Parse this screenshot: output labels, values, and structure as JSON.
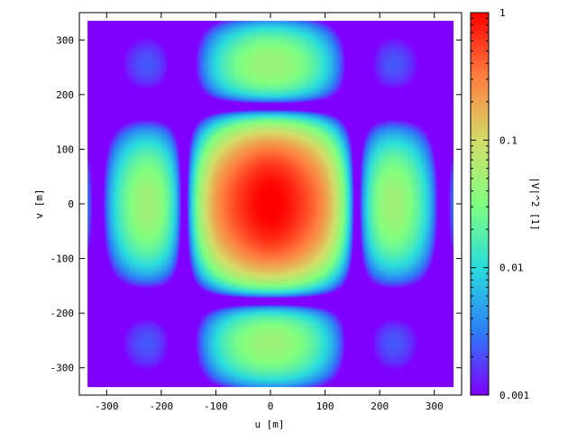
{
  "chart_data": {
    "type": "heatmap",
    "title": "",
    "xlabel": "u [m]",
    "ylabel": "v [m]",
    "xlim": [
      -350,
      350
    ],
    "ylim": [
      -350,
      350
    ],
    "extent": {
      "u": [
        -335,
        335
      ],
      "v": [
        -335,
        335
      ]
    },
    "x_ticks": [
      -300,
      -200,
      -100,
      0,
      100,
      200,
      300
    ],
    "y_ticks": [
      -300,
      -200,
      -100,
      0,
      100,
      200,
      300
    ],
    "x_tick_labels": [
      "-300",
      "-200",
      "-100",
      "0",
      "100",
      "200",
      "300"
    ],
    "y_tick_labels": [
      "-300",
      "-200",
      "-100",
      "0",
      "100",
      "200",
      "300"
    ],
    "colorbar": {
      "label": "|V|^2 [1]",
      "scale": "log",
      "range": [
        0.001,
        1
      ],
      "ticks": [
        0.001,
        0.01,
        0.1,
        1
      ],
      "tick_labels": [
        "0.001",
        "0.01",
        "0.1",
        "1"
      ]
    },
    "colormap": [
      "#8000ff",
      "#2c7ef7",
      "#2adddd",
      "#80ff80",
      "#d4dd69",
      "#ff7f40",
      "#ff0000"
    ],
    "peaks": [
      {
        "u": 0,
        "v": 0,
        "value": 1.0
      },
      {
        "u": -100,
        "v": 0,
        "value": 0.22
      },
      {
        "u": 100,
        "v": 0,
        "value": 0.22
      },
      {
        "u": -240,
        "v": 0,
        "value": 0.012
      },
      {
        "u": 240,
        "v": 0,
        "value": 0.012
      },
      {
        "u": 0,
        "v": 265,
        "value": 0.012
      },
      {
        "u": 0,
        "v": -265,
        "value": 0.012
      },
      {
        "u": -100,
        "v": -235,
        "value": 0.012
      },
      {
        "u": 100,
        "v": -235,
        "value": 0.012
      },
      {
        "u": -100,
        "v": 235,
        "value": 0.012
      },
      {
        "u": 100,
        "v": 235,
        "value": 0.012
      }
    ],
    "grid": false,
    "legend": "colorbar-right"
  }
}
